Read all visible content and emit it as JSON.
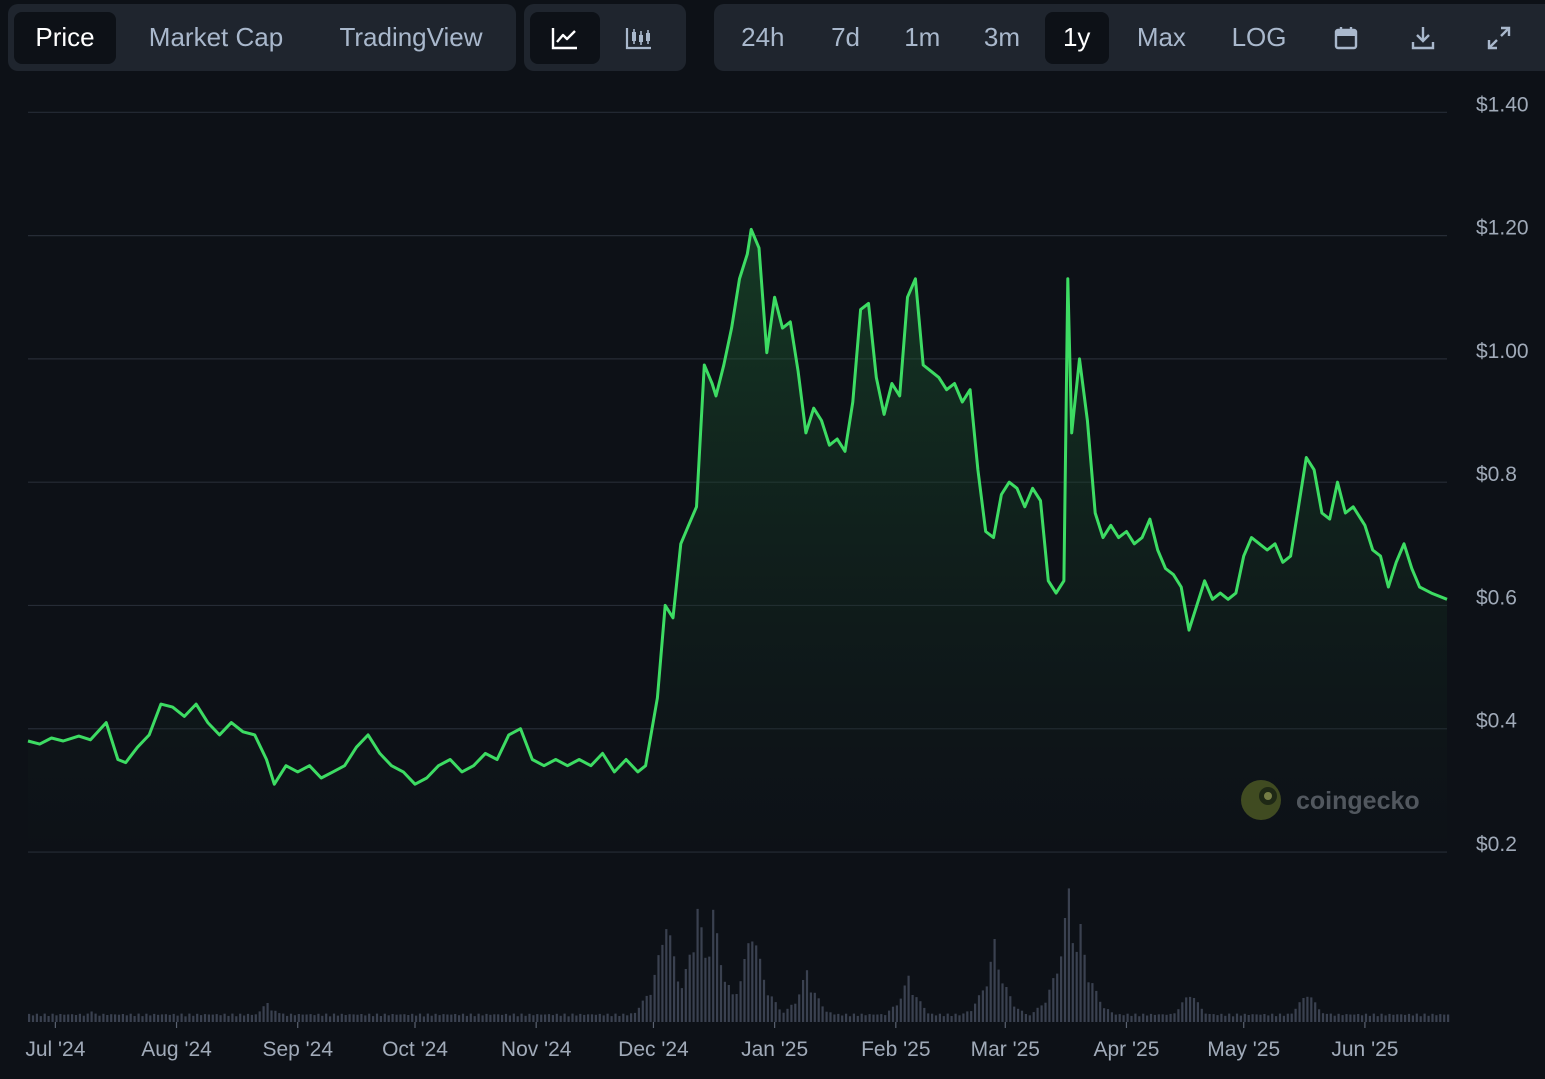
{
  "toolbar": {
    "type_tabs": [
      {
        "label": "Price",
        "active": true
      },
      {
        "label": "Market Cap",
        "active": false
      },
      {
        "label": "TradingView",
        "active": false
      }
    ],
    "style_buttons": [
      {
        "icon": "line-chart-icon",
        "active": true
      },
      {
        "icon": "candlestick-chart-icon",
        "active": false
      }
    ],
    "ranges": [
      {
        "label": "24h",
        "active": false
      },
      {
        "label": "7d",
        "active": false
      },
      {
        "label": "1m",
        "active": false
      },
      {
        "label": "3m",
        "active": false
      },
      {
        "label": "1y",
        "active": true
      },
      {
        "label": "Max",
        "active": false
      },
      {
        "label": "LOG",
        "active": false
      }
    ],
    "tool_icons": [
      "calendar-icon",
      "download-icon",
      "fullscreen-icon"
    ]
  },
  "watermark": {
    "text": "coingecko"
  },
  "colors": {
    "line": "#3ddc63",
    "volume": "#3a4150",
    "grid": "#262c36",
    "label": "#a0aab8"
  },
  "chart_data": {
    "type": "area",
    "x_start": "2024-06-24",
    "x_end": "2025-06-22",
    "xtick_labels": [
      {
        "date": "2024-07-01",
        "label": "Jul '24"
      },
      {
        "date": "2024-08-01",
        "label": "Aug '24"
      },
      {
        "date": "2024-09-01",
        "label": "Sep '24"
      },
      {
        "date": "2024-10-01",
        "label": "Oct '24"
      },
      {
        "date": "2024-11-01",
        "label": "Nov '24"
      },
      {
        "date": "2024-12-01",
        "label": "Dec '24"
      },
      {
        "date": "2025-01-01",
        "label": "Jan '25"
      },
      {
        "date": "2025-02-01",
        "label": "Feb '25"
      },
      {
        "date": "2025-03-01",
        "label": "Mar '25"
      },
      {
        "date": "2025-04-01",
        "label": "Apr '25"
      },
      {
        "date": "2025-05-01",
        "label": "May '25"
      },
      {
        "date": "2025-06-01",
        "label": "Jun '25"
      }
    ],
    "yticks": [
      0.2,
      0.4,
      0.6,
      0.8,
      1.0,
      1.2,
      1.4
    ],
    "ytick_labels": [
      "$0.2",
      "$0.4",
      "$0.6",
      "$0.8",
      "$1.00",
      "$1.20",
      "$1.40"
    ],
    "ylim": [
      0.2,
      1.42
    ],
    "price": [
      [
        "2024-06-24",
        0.38
      ],
      [
        "2024-06-27",
        0.375
      ],
      [
        "2024-06-30",
        0.385
      ],
      [
        "2024-07-03",
        0.38
      ],
      [
        "2024-07-07",
        0.388
      ],
      [
        "2024-07-10",
        0.382
      ],
      [
        "2024-07-14",
        0.41
      ],
      [
        "2024-07-17",
        0.35
      ],
      [
        "2024-07-19",
        0.345
      ],
      [
        "2024-07-22",
        0.37
      ],
      [
        "2024-07-25",
        0.39
      ],
      [
        "2024-07-28",
        0.44
      ],
      [
        "2024-07-31",
        0.435
      ],
      [
        "2024-08-03",
        0.42
      ],
      [
        "2024-08-06",
        0.44
      ],
      [
        "2024-08-09",
        0.41
      ],
      [
        "2024-08-12",
        0.39
      ],
      [
        "2024-08-15",
        0.41
      ],
      [
        "2024-08-18",
        0.395
      ],
      [
        "2024-08-21",
        0.39
      ],
      [
        "2024-08-24",
        0.35
      ],
      [
        "2024-08-26",
        0.31
      ],
      [
        "2024-08-29",
        0.34
      ],
      [
        "2024-09-01",
        0.33
      ],
      [
        "2024-09-04",
        0.34
      ],
      [
        "2024-09-07",
        0.32
      ],
      [
        "2024-09-10",
        0.33
      ],
      [
        "2024-09-13",
        0.34
      ],
      [
        "2024-09-16",
        0.37
      ],
      [
        "2024-09-19",
        0.39
      ],
      [
        "2024-09-22",
        0.36
      ],
      [
        "2024-09-25",
        0.34
      ],
      [
        "2024-09-28",
        0.33
      ],
      [
        "2024-10-01",
        0.31
      ],
      [
        "2024-10-04",
        0.32
      ],
      [
        "2024-10-07",
        0.34
      ],
      [
        "2024-10-10",
        0.35
      ],
      [
        "2024-10-13",
        0.33
      ],
      [
        "2024-10-16",
        0.34
      ],
      [
        "2024-10-19",
        0.36
      ],
      [
        "2024-10-22",
        0.35
      ],
      [
        "2024-10-25",
        0.39
      ],
      [
        "2024-10-28",
        0.4
      ],
      [
        "2024-10-31",
        0.35
      ],
      [
        "2024-11-03",
        0.34
      ],
      [
        "2024-11-06",
        0.35
      ],
      [
        "2024-11-09",
        0.34
      ],
      [
        "2024-11-12",
        0.35
      ],
      [
        "2024-11-15",
        0.34
      ],
      [
        "2024-11-18",
        0.36
      ],
      [
        "2024-11-21",
        0.33
      ],
      [
        "2024-11-24",
        0.35
      ],
      [
        "2024-11-27",
        0.33
      ],
      [
        "2024-11-29",
        0.34
      ],
      [
        "2024-12-02",
        0.45
      ],
      [
        "2024-12-04",
        0.6
      ],
      [
        "2024-12-06",
        0.58
      ],
      [
        "2024-12-08",
        0.7
      ],
      [
        "2024-12-10",
        0.73
      ],
      [
        "2024-12-12",
        0.76
      ],
      [
        "2024-12-14",
        0.99
      ],
      [
        "2024-12-16",
        0.96
      ],
      [
        "2024-12-17",
        0.94
      ],
      [
        "2024-12-19",
        0.99
      ],
      [
        "2024-12-21",
        1.05
      ],
      [
        "2024-12-23",
        1.13
      ],
      [
        "2024-12-25",
        1.17
      ],
      [
        "2024-12-26",
        1.21
      ],
      [
        "2024-12-28",
        1.18
      ],
      [
        "2024-12-30",
        1.01
      ],
      [
        "2025-01-01",
        1.1
      ],
      [
        "2025-01-03",
        1.05
      ],
      [
        "2025-01-05",
        1.06
      ],
      [
        "2025-01-07",
        0.98
      ],
      [
        "2025-01-09",
        0.88
      ],
      [
        "2025-01-11",
        0.92
      ],
      [
        "2025-01-13",
        0.9
      ],
      [
        "2025-01-15",
        0.86
      ],
      [
        "2025-01-17",
        0.87
      ],
      [
        "2025-01-19",
        0.85
      ],
      [
        "2025-01-21",
        0.93
      ],
      [
        "2025-01-23",
        1.08
      ],
      [
        "2025-01-25",
        1.09
      ],
      [
        "2025-01-27",
        0.97
      ],
      [
        "2025-01-29",
        0.91
      ],
      [
        "2025-01-31",
        0.96
      ],
      [
        "2025-02-02",
        0.94
      ],
      [
        "2025-02-04",
        1.1
      ],
      [
        "2025-02-06",
        1.13
      ],
      [
        "2025-02-08",
        0.99
      ],
      [
        "2025-02-10",
        0.98
      ],
      [
        "2025-02-12",
        0.97
      ],
      [
        "2025-02-14",
        0.95
      ],
      [
        "2025-02-16",
        0.96
      ],
      [
        "2025-02-18",
        0.93
      ],
      [
        "2025-02-20",
        0.95
      ],
      [
        "2025-02-22",
        0.82
      ],
      [
        "2025-02-24",
        0.72
      ],
      [
        "2025-02-26",
        0.71
      ],
      [
        "2025-02-28",
        0.78
      ],
      [
        "2025-03-02",
        0.8
      ],
      [
        "2025-03-04",
        0.79
      ],
      [
        "2025-03-06",
        0.76
      ],
      [
        "2025-03-08",
        0.79
      ],
      [
        "2025-03-10",
        0.77
      ],
      [
        "2025-03-12",
        0.64
      ],
      [
        "2025-03-14",
        0.62
      ],
      [
        "2025-03-16",
        0.64
      ],
      [
        "2025-03-17",
        1.13
      ],
      [
        "2025-03-18",
        0.88
      ],
      [
        "2025-03-20",
        1.0
      ],
      [
        "2025-03-22",
        0.9
      ],
      [
        "2025-03-24",
        0.75
      ],
      [
        "2025-03-26",
        0.71
      ],
      [
        "2025-03-28",
        0.73
      ],
      [
        "2025-03-30",
        0.71
      ],
      [
        "2025-04-01",
        0.72
      ],
      [
        "2025-04-03",
        0.7
      ],
      [
        "2025-04-05",
        0.71
      ],
      [
        "2025-04-07",
        0.74
      ],
      [
        "2025-04-09",
        0.69
      ],
      [
        "2025-04-11",
        0.66
      ],
      [
        "2025-04-13",
        0.65
      ],
      [
        "2025-04-15",
        0.63
      ],
      [
        "2025-04-17",
        0.56
      ],
      [
        "2025-04-19",
        0.6
      ],
      [
        "2025-04-21",
        0.64
      ],
      [
        "2025-04-23",
        0.61
      ],
      [
        "2025-04-25",
        0.62
      ],
      [
        "2025-04-27",
        0.61
      ],
      [
        "2025-04-29",
        0.62
      ],
      [
        "2025-05-01",
        0.68
      ],
      [
        "2025-05-03",
        0.71
      ],
      [
        "2025-05-05",
        0.7
      ],
      [
        "2025-05-07",
        0.69
      ],
      [
        "2025-05-09",
        0.7
      ],
      [
        "2025-05-11",
        0.67
      ],
      [
        "2025-05-13",
        0.68
      ],
      [
        "2025-05-15",
        0.76
      ],
      [
        "2025-05-17",
        0.84
      ],
      [
        "2025-05-19",
        0.82
      ],
      [
        "2025-05-21",
        0.75
      ],
      [
        "2025-05-23",
        0.74
      ],
      [
        "2025-05-25",
        0.8
      ],
      [
        "2025-05-27",
        0.75
      ],
      [
        "2025-05-29",
        0.76
      ],
      [
        "2025-06-01",
        0.73
      ],
      [
        "2025-06-03",
        0.69
      ],
      [
        "2025-06-05",
        0.68
      ],
      [
        "2025-06-07",
        0.63
      ],
      [
        "2025-06-09",
        0.67
      ],
      [
        "2025-06-11",
        0.7
      ],
      [
        "2025-06-13",
        0.66
      ],
      [
        "2025-06-15",
        0.63
      ],
      [
        "2025-06-18",
        0.62
      ],
      [
        "2025-06-22",
        0.61
      ]
    ],
    "volume_peaks": [
      [
        "2024-07-10",
        0.08
      ],
      [
        "2024-08-24",
        0.15
      ],
      [
        "2024-12-04",
        0.85
      ],
      [
        "2024-12-12",
        0.9
      ],
      [
        "2024-12-16",
        0.85
      ],
      [
        "2024-12-26",
        0.8
      ],
      [
        "2025-01-09",
        0.4
      ],
      [
        "2025-02-04",
        0.35
      ],
      [
        "2025-02-26",
        0.6
      ],
      [
        "2025-03-17",
        1.0
      ],
      [
        "2025-03-20",
        0.7
      ],
      [
        "2025-04-17",
        0.25
      ],
      [
        "2025-05-17",
        0.25
      ]
    ]
  }
}
